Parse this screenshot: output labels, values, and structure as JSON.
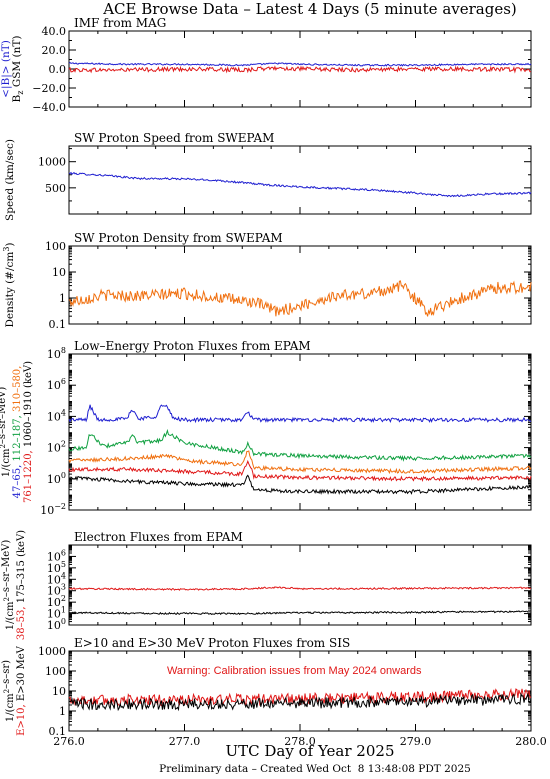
{
  "page": {
    "title": "ACE Browse Data – Latest 4 Days (5 minute averages)",
    "x_axis_label": "UTC Day of Year 2025",
    "footer": "Preliminary data – Created Wed Oct  8 13:48:08 PDT 2025"
  },
  "colors": {
    "blue": "#1f1fd0",
    "red": "#e01818",
    "orange": "#f07010",
    "green": "#10a040",
    "black": "#000000"
  },
  "chart_data": [
    {
      "type": "line",
      "title": "IMF from MAG",
      "ylabel_parts": [
        "<|B|> (nT)",
        "B",
        "z",
        " GSM (nT)"
      ],
      "ylim": [
        -40,
        40
      ],
      "yscale": "linear",
      "xlim": [
        276.0,
        280.0
      ],
      "yticks": [
        -40,
        -20,
        0,
        20,
        40
      ],
      "ytick_labels": [
        "−40.0",
        "−20.0",
        "0.0",
        "20.0",
        "40.0"
      ],
      "series": [
        {
          "name": "<|B|> (nT)",
          "color_key": "blue",
          "x": [
            276.0,
            276.5,
            277.0,
            277.5,
            277.8,
            278.0,
            278.5,
            279.0,
            279.5,
            280.0
          ],
          "y": [
            6,
            5,
            5,
            4,
            6,
            5,
            4,
            4,
            5,
            5
          ]
        },
        {
          "name": "B GSM (nT)",
          "color_key": "red",
          "x": [
            276.0,
            276.5,
            277.0,
            277.5,
            277.8,
            278.0,
            278.5,
            279.0,
            279.5,
            280.0
          ],
          "y": [
            -1,
            -1,
            0,
            -1,
            1,
            0,
            -1,
            0,
            0,
            -1
          ]
        }
      ]
    },
    {
      "type": "line",
      "title": "SW Proton Speed from SWEPAM",
      "ylabel": "Speed (km/sec)",
      "ylim": [
        0,
        1300
      ],
      "yscale": "linear",
      "xlim": [
        276.0,
        280.0
      ],
      "yticks": [
        500,
        1000
      ],
      "ytick_labels": [
        "500",
        "1000"
      ],
      "series": [
        {
          "name": "Speed",
          "color_key": "blue",
          "x": [
            276.0,
            276.3,
            276.6,
            277.0,
            277.3,
            277.7,
            278.0,
            278.4,
            278.7,
            279.0,
            279.3,
            279.6,
            280.0
          ],
          "y": [
            780,
            740,
            680,
            670,
            640,
            560,
            520,
            480,
            450,
            400,
            340,
            380,
            400
          ]
        }
      ]
    },
    {
      "type": "line",
      "title": "SW Proton Density from SWEPAM",
      "ylabel_parts": [
        "Density (#/cm",
        "3",
        ")"
      ],
      "ylim": [
        0.1,
        100
      ],
      "yscale": "log",
      "xlim": [
        276.0,
        280.0
      ],
      "yticks": [
        0.1,
        1,
        10,
        100
      ],
      "ytick_labels": [
        "0.1",
        "1",
        "10",
        "100"
      ],
      "series": [
        {
          "name": "Density",
          "color_key": "orange",
          "x": [
            276.0,
            276.3,
            276.6,
            277.0,
            277.3,
            277.6,
            277.8,
            278.0,
            278.3,
            278.6,
            278.9,
            279.1,
            279.4,
            279.7,
            280.0
          ],
          "y": [
            0.7,
            1.3,
            1.2,
            1.5,
            1.0,
            0.7,
            0.3,
            0.5,
            1.2,
            1.5,
            3.0,
            0.3,
            1.0,
            2.5,
            2.5
          ]
        }
      ]
    },
    {
      "type": "line",
      "title": "Low–Energy Proton Fluxes from EPAM",
      "ylabel_lines": [
        [
          {
            "text": "1/(cm",
            "color_key": "black"
          },
          {
            "text": "2",
            "color_key": "black",
            "sup": true
          },
          {
            "text": "–s–sr–MeV)",
            "color_key": "black"
          }
        ],
        [
          {
            "text": "47–65,",
            "color_key": "blue"
          },
          {
            "text": " 112–187,",
            "color_key": "green"
          },
          {
            "text": " 310–580,",
            "color_key": "orange"
          }
        ],
        [
          {
            "text": "761–1220,",
            "color_key": "red"
          },
          {
            "text": " 1060–1910 (keV)",
            "color_key": "black"
          }
        ]
      ],
      "ylim": [
        0.01,
        100000000
      ],
      "yscale": "log",
      "xlim": [
        276.0,
        280.0
      ],
      "yticks": [
        0.01,
        1,
        100,
        10000,
        1000000,
        100000000
      ],
      "ytick_labels": [
        [
          "10",
          "−2"
        ],
        [
          "10",
          "0"
        ],
        [
          "10",
          "2"
        ],
        [
          "10",
          "4"
        ],
        [
          "10",
          "6"
        ],
        [
          "10",
          "8"
        ]
      ],
      "series": [
        {
          "name": "47–65",
          "color_key": "blue",
          "x": [
            276.0,
            276.15,
            276.18,
            276.25,
            276.5,
            276.55,
            276.6,
            276.75,
            276.8,
            276.85,
            276.9,
            277.0,
            277.5,
            277.55,
            277.6,
            278.0,
            279.0,
            280.0
          ],
          "y": [
            6000,
            6000,
            50000,
            6000,
            7000,
            30000,
            7000,
            10000,
            50000,
            40000,
            8000,
            6000,
            6000,
            20000,
            6000,
            6000,
            6000,
            6000
          ]
        },
        {
          "name": "112–187",
          "color_key": "green",
          "x": [
            276.0,
            276.15,
            276.18,
            276.3,
            276.5,
            276.55,
            276.6,
            276.8,
            276.85,
            277.0,
            277.5,
            277.55,
            277.6,
            278.0,
            279.0,
            280.0
          ],
          "y": [
            80,
            100,
            800,
            120,
            200,
            600,
            200,
            300,
            1000,
            200,
            50,
            200,
            40,
            30,
            20,
            30
          ]
        },
        {
          "name": "310–580",
          "color_key": "orange",
          "x": [
            276.0,
            276.5,
            276.85,
            277.0,
            277.5,
            277.55,
            277.6,
            278.0,
            279.0,
            280.0
          ],
          "y": [
            15,
            20,
            30,
            15,
            8,
            80,
            5,
            4,
            3,
            5
          ]
        },
        {
          "name": "761–1220",
          "color_key": "red",
          "x": [
            276.0,
            276.5,
            277.0,
            277.5,
            277.55,
            277.6,
            278.0,
            279.0,
            280.0
          ],
          "y": [
            4,
            4,
            3,
            2,
            15,
            1.5,
            1.2,
            1.0,
            1.2
          ]
        },
        {
          "name": "1060–1910 (keV)",
          "color_key": "black",
          "x": [
            276.0,
            276.5,
            277.0,
            277.5,
            277.55,
            277.6,
            278.0,
            279.0,
            280.0
          ],
          "y": [
            1.2,
            0.7,
            0.5,
            0.4,
            1.5,
            0.2,
            0.15,
            0.15,
            0.3
          ]
        }
      ]
    },
    {
      "type": "line",
      "title": "Electron Fluxes from EPAM",
      "ylabel_lines": [
        [
          {
            "text": "1/(cm",
            "color_key": "black"
          },
          {
            "text": "2",
            "color_key": "black",
            "sup": true
          },
          {
            "text": "–s–sr–MeV)",
            "color_key": "black"
          }
        ],
        [
          {
            "text": "38–53,",
            "color_key": "red"
          },
          {
            "text": " 175–315 (keV)",
            "color_key": "black"
          }
        ]
      ],
      "ylim": [
        1,
        10000000
      ],
      "yscale": "log",
      "xlim": [
        276.0,
        280.0
      ],
      "yticks": [
        1,
        10,
        100,
        1000,
        10000,
        100000,
        1000000
      ],
      "ytick_labels": [
        [
          "10",
          "0"
        ],
        [
          "10",
          "1"
        ],
        [
          "10",
          "2"
        ],
        [
          "10",
          "3"
        ],
        [
          "10",
          "4"
        ],
        [
          "10",
          "5"
        ],
        [
          "10",
          "6"
        ]
      ],
      "series": [
        {
          "name": "38–53",
          "color_key": "red",
          "x": [
            276.0,
            276.5,
            277.0,
            277.5,
            277.8,
            278.0,
            278.5,
            279.0,
            279.5,
            280.0
          ],
          "y": [
            1500,
            1400,
            1300,
            1400,
            2000,
            1500,
            1500,
            1600,
            1700,
            1800
          ]
        },
        {
          "name": "175–315 (keV)",
          "color_key": "black",
          "x": [
            276.0,
            276.5,
            277.0,
            277.5,
            277.8,
            278.0,
            278.5,
            279.0,
            279.5,
            280.0
          ],
          "y": [
            12,
            11,
            10,
            10,
            11,
            12,
            12,
            13,
            14,
            15
          ]
        }
      ]
    },
    {
      "type": "line",
      "title": "E>10 and E>30 MeV Proton Fluxes from SIS",
      "annotation": "Warning: Calibration issues from May 2024 onwards",
      "ylabel_lines": [
        [
          {
            "text": "1/(cm",
            "color_key": "black"
          },
          {
            "text": "2",
            "color_key": "black",
            "sup": true
          },
          {
            "text": "–s–sr)",
            "color_key": "black"
          }
        ],
        [
          {
            "text": "E>10,",
            "color_key": "red"
          },
          {
            "text": " E>30 MeV",
            "color_key": "black"
          }
        ]
      ],
      "ylim": [
        0.1,
        1000
      ],
      "yscale": "log",
      "xlim": [
        276.0,
        280.0
      ],
      "yticks": [
        0.1,
        1,
        10,
        100,
        1000
      ],
      "ytick_labels": [
        "0.1",
        "1",
        "10",
        "100",
        "1000"
      ],
      "xticks": [
        276.0,
        277.0,
        278.0,
        279.0,
        280.0
      ],
      "xtick_labels": [
        "276.0",
        "277.0",
        "278.0",
        "279.0",
        "280.0"
      ],
      "series": [
        {
          "name": "E>10",
          "color_key": "red",
          "x": [
            276.0,
            277.0,
            278.0,
            279.0,
            280.0
          ],
          "y": [
            3.5,
            3.5,
            4,
            5,
            7
          ]
        },
        {
          "name": "E>30 MeV",
          "color_key": "black",
          "x": [
            276.0,
            277.0,
            278.0,
            279.0,
            280.0
          ],
          "y": [
            2.2,
            2.2,
            2.5,
            3,
            4
          ]
        }
      ]
    }
  ]
}
